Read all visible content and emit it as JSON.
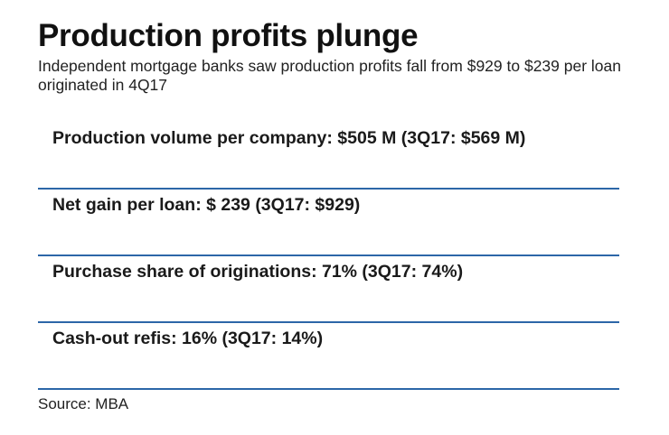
{
  "title": "Production profits plunge",
  "subtitle": "Independent mortgage banks saw production profits fall from $929 to $239 per loan originated in 4Q17",
  "stats": [
    "Production volume per company: $505 M (3Q17: $569 M)",
    "Net gain per loan: $ 239 (3Q17: $929)",
    "Purchase share of originations: 71% (3Q17: 74%)",
    "Cash-out refis: 16% (3Q17: 14%)"
  ],
  "source": "Source: MBA",
  "colors": {
    "divider": "#2c66a8",
    "text": "#111111"
  }
}
